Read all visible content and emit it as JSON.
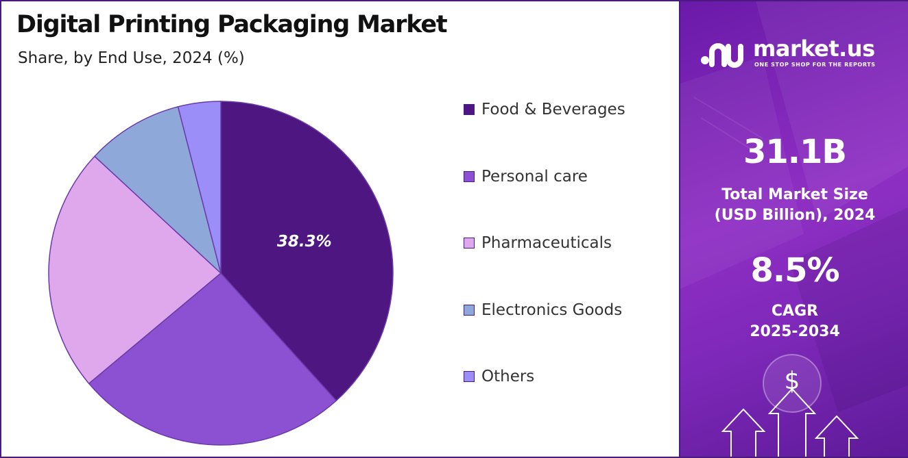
{
  "chart_data": {
    "type": "pie",
    "title": "Digital Printing Packaging Market",
    "subtitle": "Share, by End Use, 2024 (%)",
    "categories": [
      "Food & Beverages",
      "Personal care",
      "Pharmaceuticals",
      "Electronics Goods",
      "Others"
    ],
    "values": [
      38.3,
      25.6,
      23.0,
      9.1,
      4.0
    ],
    "data_labels": [
      "38.3%",
      "",
      "",
      "",
      ""
    ],
    "colors": [
      "#4e1680",
      "#8c50d2",
      "#e0a8ec",
      "#8fa8da",
      "#9b8ef8"
    ],
    "legend_position": "right",
    "start_angle_deg": 0,
    "direction": "clockwise"
  },
  "side_panel": {
    "brand": "market.us",
    "tagline": "ONE STOP SHOP FOR THE REPORTS",
    "market_size_value": "31.1B",
    "market_size_label_line1": "Total Market Size",
    "market_size_label_line2": "(USD Billion), 2024",
    "cagr_value": "8.5%",
    "cagr_label_line1": "CAGR",
    "cagr_label_line2": "2025-2034",
    "currency_symbol": "$",
    "icons": [
      "market-us-logo-icon",
      "dollar-coin-icon",
      "up-arrow-icon"
    ]
  }
}
